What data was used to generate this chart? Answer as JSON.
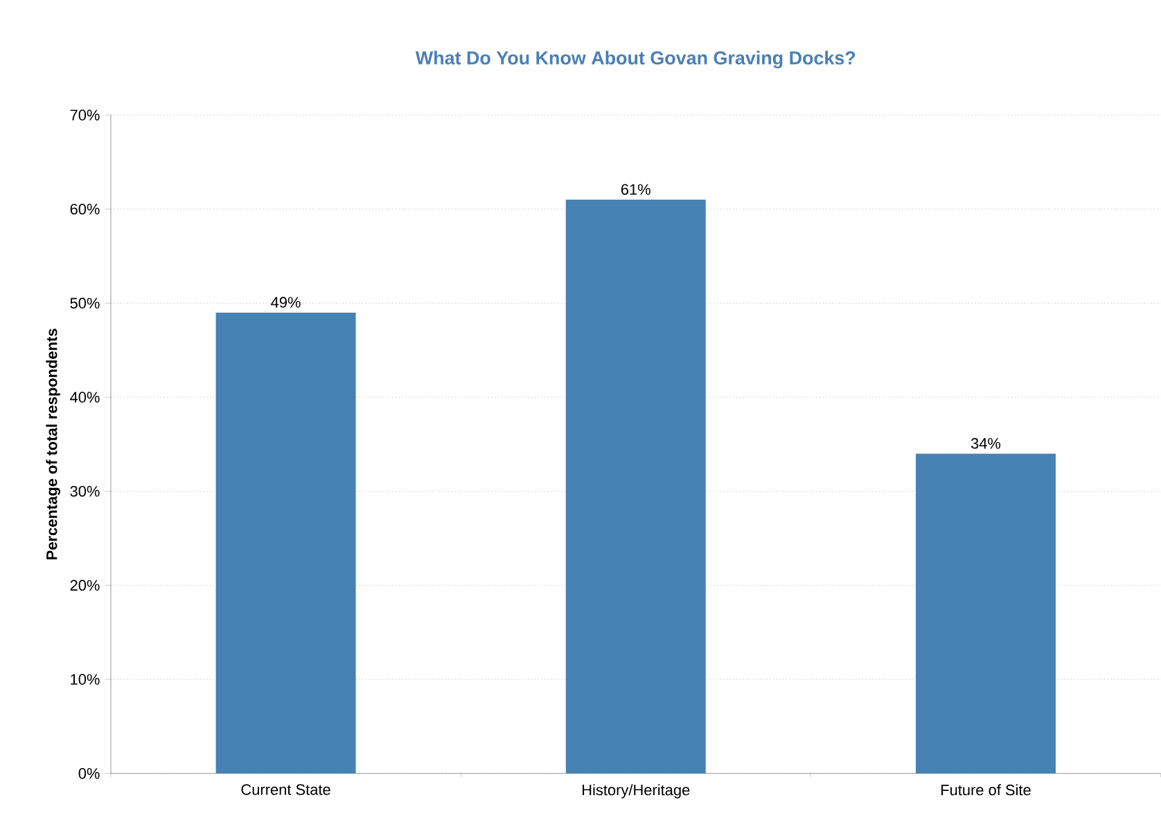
{
  "chart_data": {
    "type": "bar",
    "title": "What Do You Know About Govan Graving Docks?",
    "ylabel": "Percentage of total respondents",
    "categories": [
      "Current State",
      "History/Heritage",
      "Future of Site"
    ],
    "values": [
      49,
      61,
      34
    ],
    "color": "#4682b4",
    "data_labels": true,
    "value_labels": [
      "49%",
      "61%",
      "34%"
    ],
    "ylim": [
      0,
      70
    ],
    "yticks": [
      {
        "value": 0,
        "label": "0%"
      },
      {
        "value": 10,
        "label": "10%"
      },
      {
        "value": 20,
        "label": "20%"
      },
      {
        "value": 30,
        "label": "30%"
      },
      {
        "value": 40,
        "label": "40%"
      },
      {
        "value": 50,
        "label": "50%"
      },
      {
        "value": 60,
        "label": "60%"
      },
      {
        "value": 70,
        "label": "70%"
      }
    ],
    "grid": "y"
  }
}
